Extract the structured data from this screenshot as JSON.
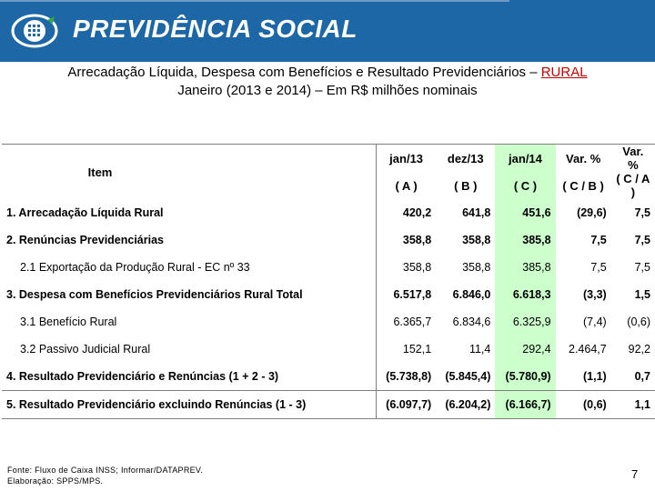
{
  "brand": "PREVIDÊNCIA SOCIAL",
  "title_line1_prefix": "Arrecadação Líquida, Despesa com Benefícios e Resultado Previdenciários – ",
  "title_line1_highlight": "RURAL",
  "title_line2": "Janeiro (2013 e 2014) – Em R$ milhões nominais",
  "table": {
    "item_header": "Item",
    "columns": [
      {
        "label": "jan/13",
        "sub": "( A )"
      },
      {
        "label": "dez/13",
        "sub": "( B )"
      },
      {
        "label": "jan/14",
        "sub": "( C )"
      },
      {
        "label": "Var. %",
        "sub": "( C / B )"
      },
      {
        "label": "Var. %",
        "sub": "( C / A )"
      }
    ],
    "rows": [
      {
        "label": "1. Arrecadação Líquida Rural",
        "values": [
          "420,2",
          "641,8",
          "451,6",
          "(29,6)",
          "7,5"
        ]
      },
      {
        "label": "2. Renúncias Previdenciárias",
        "values": [
          "358,8",
          "358,8",
          "385,8",
          "7,5",
          "7,5"
        ]
      },
      {
        "label": "2.1 Exportação da Produção Rural - EC nº 33",
        "values": [
          "358,8",
          "358,8",
          "385,8",
          "7,5",
          "7,5"
        ]
      },
      {
        "label": "3. Despesa com Benefícios Previdenciários Rural Total",
        "values": [
          "6.517,8",
          "6.846,0",
          "6.618,3",
          "(3,3)",
          "1,5"
        ]
      },
      {
        "label": "3.1 Benefício Rural",
        "values": [
          "6.365,7",
          "6.834,6",
          "6.325,9",
          "(7,4)",
          "(0,6)"
        ]
      },
      {
        "label": "3.2 Passivo Judicial Rural",
        "values": [
          "152,1",
          "11,4",
          "292,4",
          "2.464,7",
          "92,2"
        ]
      },
      {
        "label": "4. Resultado Previdenciário e Renúncias (1 + 2 - 3)",
        "values": [
          "(5.738,8)",
          "(5.845,4)",
          "(5.780,9)",
          "(1,1)",
          "0,7"
        ]
      },
      {
        "label": "5. Resultado Previdenciário excluindo Renúncias (1 - 3)",
        "values": [
          "(6.097,7)",
          "(6.204,2)",
          "(6.166,7)",
          "(0,6)",
          "1,1"
        ]
      }
    ]
  },
  "source_line1": "Fonte: Fluxo de Caixa INSS; Informar/DATAPREV.",
  "source_line2": "Elaboração: SPPS/MPS.",
  "page_number": "7",
  "colors": {
    "header_bg": "#1e67a6",
    "highlight_col": "#ccffcc",
    "title_highlight": "#c00000"
  }
}
